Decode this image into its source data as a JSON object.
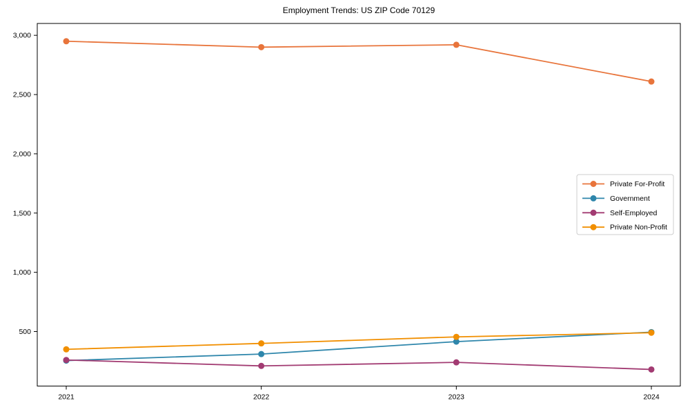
{
  "figure": {
    "background": "#ffffff",
    "spine_color": "#000000",
    "tick_color": "#000000",
    "text_color": "#000000",
    "legend_border_color": "#cccccc"
  },
  "chart_data": {
    "type": "line",
    "title": "Employment Trends: US ZIP Code 70129",
    "categories": [
      "2021",
      "2022",
      "2023",
      "2024"
    ],
    "series": [
      {
        "name": "Private For-Profit",
        "color": "#E8743B",
        "values": [
          2950,
          2900,
          2920,
          2610
        ]
      },
      {
        "name": "Government",
        "color": "#2E86AB",
        "values": [
          255,
          310,
          415,
          495
        ]
      },
      {
        "name": "Self-Employed",
        "color": "#A23B72",
        "values": [
          260,
          210,
          240,
          180
        ]
      },
      {
        "name": "Private Non-Profit",
        "color": "#F18F01",
        "values": [
          350,
          400,
          455,
          490
        ]
      }
    ],
    "xlabel": "",
    "ylabel": "",
    "ylim": [
      40,
      3100
    ],
    "yticks": [
      500,
      1000,
      1500,
      2000,
      2500,
      3000
    ],
    "ytick_labels": [
      "500",
      "1,000",
      "1,500",
      "2,000",
      "2,500",
      "3,000"
    ],
    "grid": false,
    "legend": {
      "position": "center-right",
      "entries": [
        "Private For-Profit",
        "Government",
        "Self-Employed",
        "Private Non-Profit"
      ]
    }
  }
}
